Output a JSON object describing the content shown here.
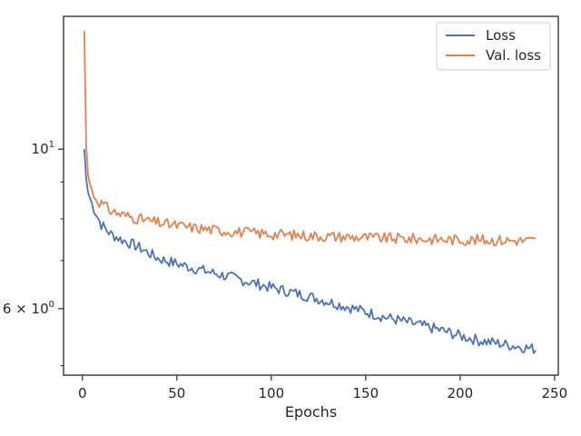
{
  "chart_data": {
    "type": "line",
    "title": "",
    "xlabel": "Epochs",
    "ylabel": "",
    "y_scale": "log",
    "grid": false,
    "legend_position": "top-right",
    "xlim": [
      -10,
      252
    ],
    "ylim": [
      4.85,
      15.3
    ],
    "x_ticks": [
      {
        "value": 0,
        "label": "0"
      },
      {
        "value": 50,
        "label": "50"
      },
      {
        "value": 100,
        "label": "100"
      },
      {
        "value": 150,
        "label": "150"
      },
      {
        "value": 200,
        "label": "200"
      },
      {
        "value": 250,
        "label": "250"
      }
    ],
    "y_major_ticks": [
      {
        "value": 10,
        "label_base": "10",
        "label_exp": "1",
        "label_prefix": ""
      },
      {
        "value": 6,
        "label_base": "10",
        "label_exp": "0",
        "label_prefix": "6 × "
      }
    ],
    "y_minor_ticks": [
      5,
      7,
      8,
      9
    ],
    "series": [
      {
        "name": "Loss",
        "color": "#4c72b0",
        "anchors": [
          [
            1,
            10.0
          ],
          [
            2,
            9.1
          ],
          [
            3,
            8.7
          ],
          [
            5,
            8.4
          ],
          [
            8,
            8.05
          ],
          [
            10,
            7.85
          ],
          [
            15,
            7.62
          ],
          [
            20,
            7.5
          ],
          [
            30,
            7.3
          ],
          [
            40,
            7.05
          ],
          [
            50,
            6.93
          ],
          [
            60,
            6.82
          ],
          [
            70,
            6.72
          ],
          [
            80,
            6.62
          ],
          [
            90,
            6.52
          ],
          [
            100,
            6.42
          ],
          [
            110,
            6.33
          ],
          [
            120,
            6.24
          ],
          [
            130,
            6.14
          ],
          [
            140,
            6.04
          ],
          [
            150,
            5.94
          ],
          [
            160,
            5.84
          ],
          [
            170,
            5.76
          ],
          [
            180,
            5.68
          ],
          [
            190,
            5.6
          ],
          [
            200,
            5.5
          ],
          [
            210,
            5.42
          ],
          [
            220,
            5.37
          ],
          [
            230,
            5.32
          ],
          [
            240,
            5.27
          ]
        ],
        "noise": 0.011,
        "seed": 7
      },
      {
        "name": "Val. loss",
        "color": "#dd8452",
        "anchors": [
          [
            1,
            14.6
          ],
          [
            2,
            10.1
          ],
          [
            3,
            9.2
          ],
          [
            4,
            8.95
          ],
          [
            5,
            8.75
          ],
          [
            7,
            8.55
          ],
          [
            10,
            8.4
          ],
          [
            15,
            8.22
          ],
          [
            20,
            8.12
          ],
          [
            30,
            8.0
          ],
          [
            40,
            7.9
          ],
          [
            50,
            7.83
          ],
          [
            60,
            7.77
          ],
          [
            70,
            7.72
          ],
          [
            80,
            7.68
          ],
          [
            90,
            7.65
          ],
          [
            100,
            7.62
          ],
          [
            120,
            7.58
          ],
          [
            140,
            7.55
          ],
          [
            160,
            7.52
          ],
          [
            180,
            7.5
          ],
          [
            200,
            7.48
          ],
          [
            220,
            7.47
          ],
          [
            240,
            7.46
          ]
        ],
        "noise": 0.011,
        "seed": 31
      }
    ]
  }
}
